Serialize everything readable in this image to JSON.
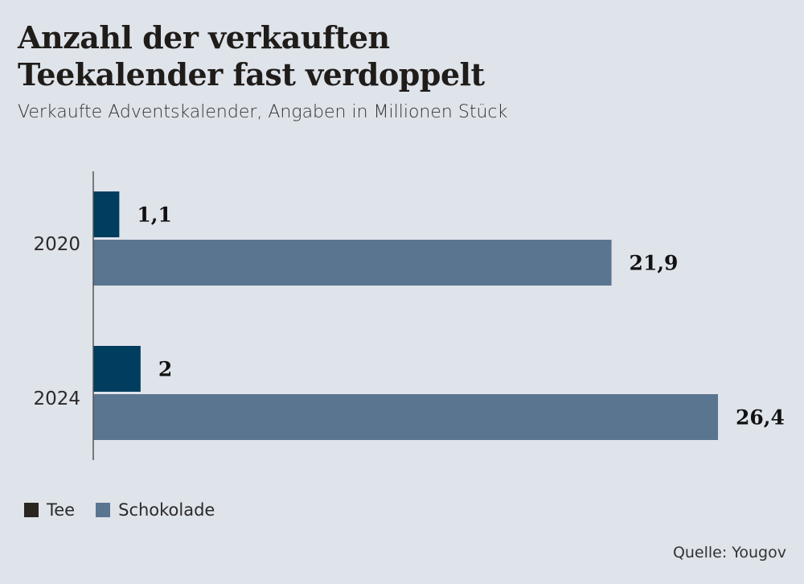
{
  "title_lines": [
    "Anzahl der verkauften",
    "Teekalender fast verdoppelt"
  ],
  "subtitle": "Verkaufte Adventskalender, Angaben in Millionen Stück",
  "source": "Quelle: Yougov",
  "chart_data": {
    "type": "bar",
    "orientation": "horizontal",
    "title": "Anzahl der verkauften Teekalender fast verdoppelt",
    "subtitle": "Verkaufte Adventskalender, Angaben in Millionen Stück",
    "categories": [
      "2020",
      "2024"
    ],
    "series": [
      {
        "name": "Tee",
        "values": [
          1.1,
          2
        ],
        "labels": [
          "1,1",
          "2"
        ],
        "color": "#003d5e",
        "legend_color": "#2a2520"
      },
      {
        "name": "Schokolade",
        "values": [
          21.9,
          26.4
        ],
        "labels": [
          "21,9",
          "26,4"
        ],
        "color": "#5a7590"
      }
    ],
    "xlim": [
      0,
      26.4
    ],
    "grid": false,
    "legend": "bottom-left"
  }
}
